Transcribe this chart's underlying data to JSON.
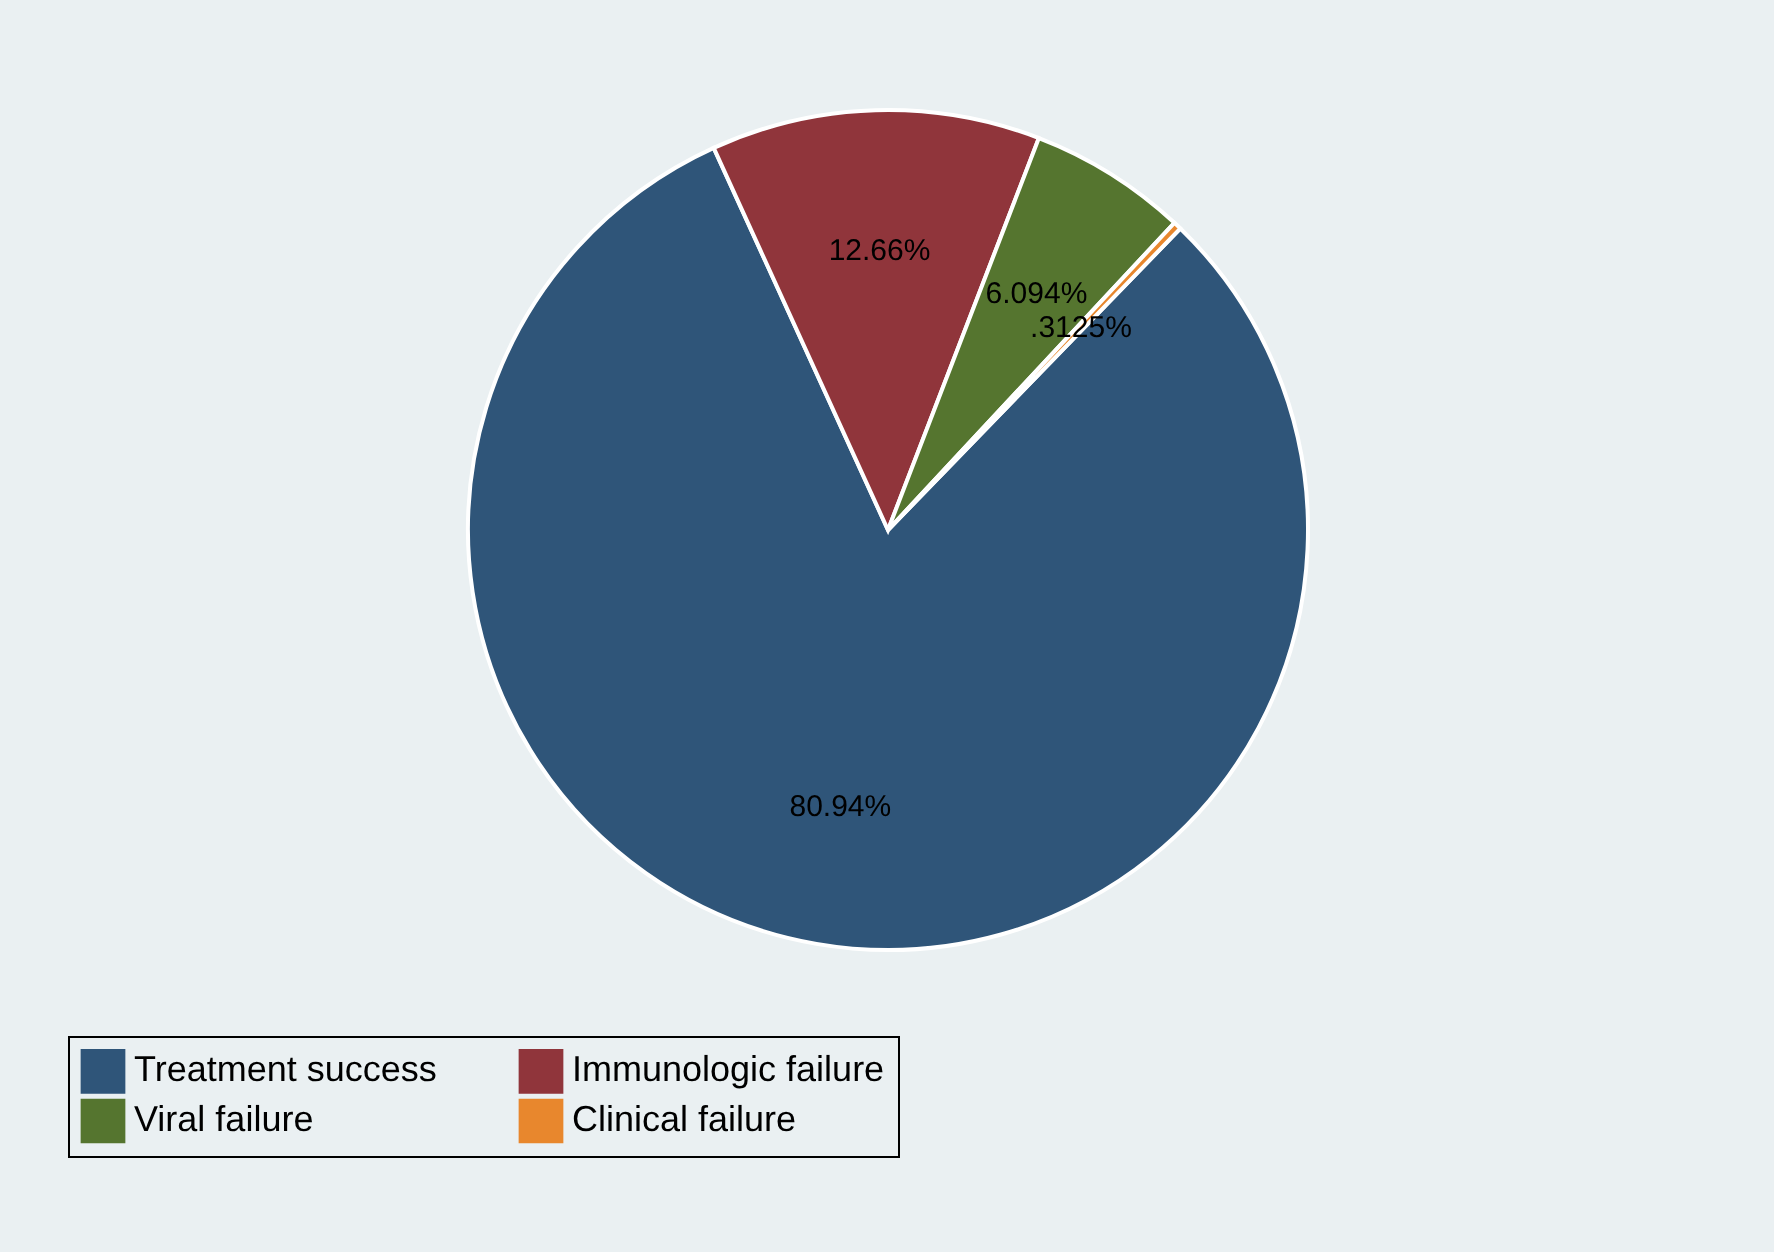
{
  "chart_data": {
    "type": "pie",
    "categories": [
      "Treatment success",
      "Immunologic failure",
      "Viral failure",
      "Clinical failure"
    ],
    "values": [
      80.94,
      12.66,
      6.094,
      0.3125
    ],
    "colors": [
      "#2f5579",
      "#90353b",
      "#55752f",
      "#e8872d"
    ],
    "value_labels": [
      "80.94%",
      "12.66%",
      "6.094%",
      ".3125%"
    ],
    "legend": "bottom"
  }
}
